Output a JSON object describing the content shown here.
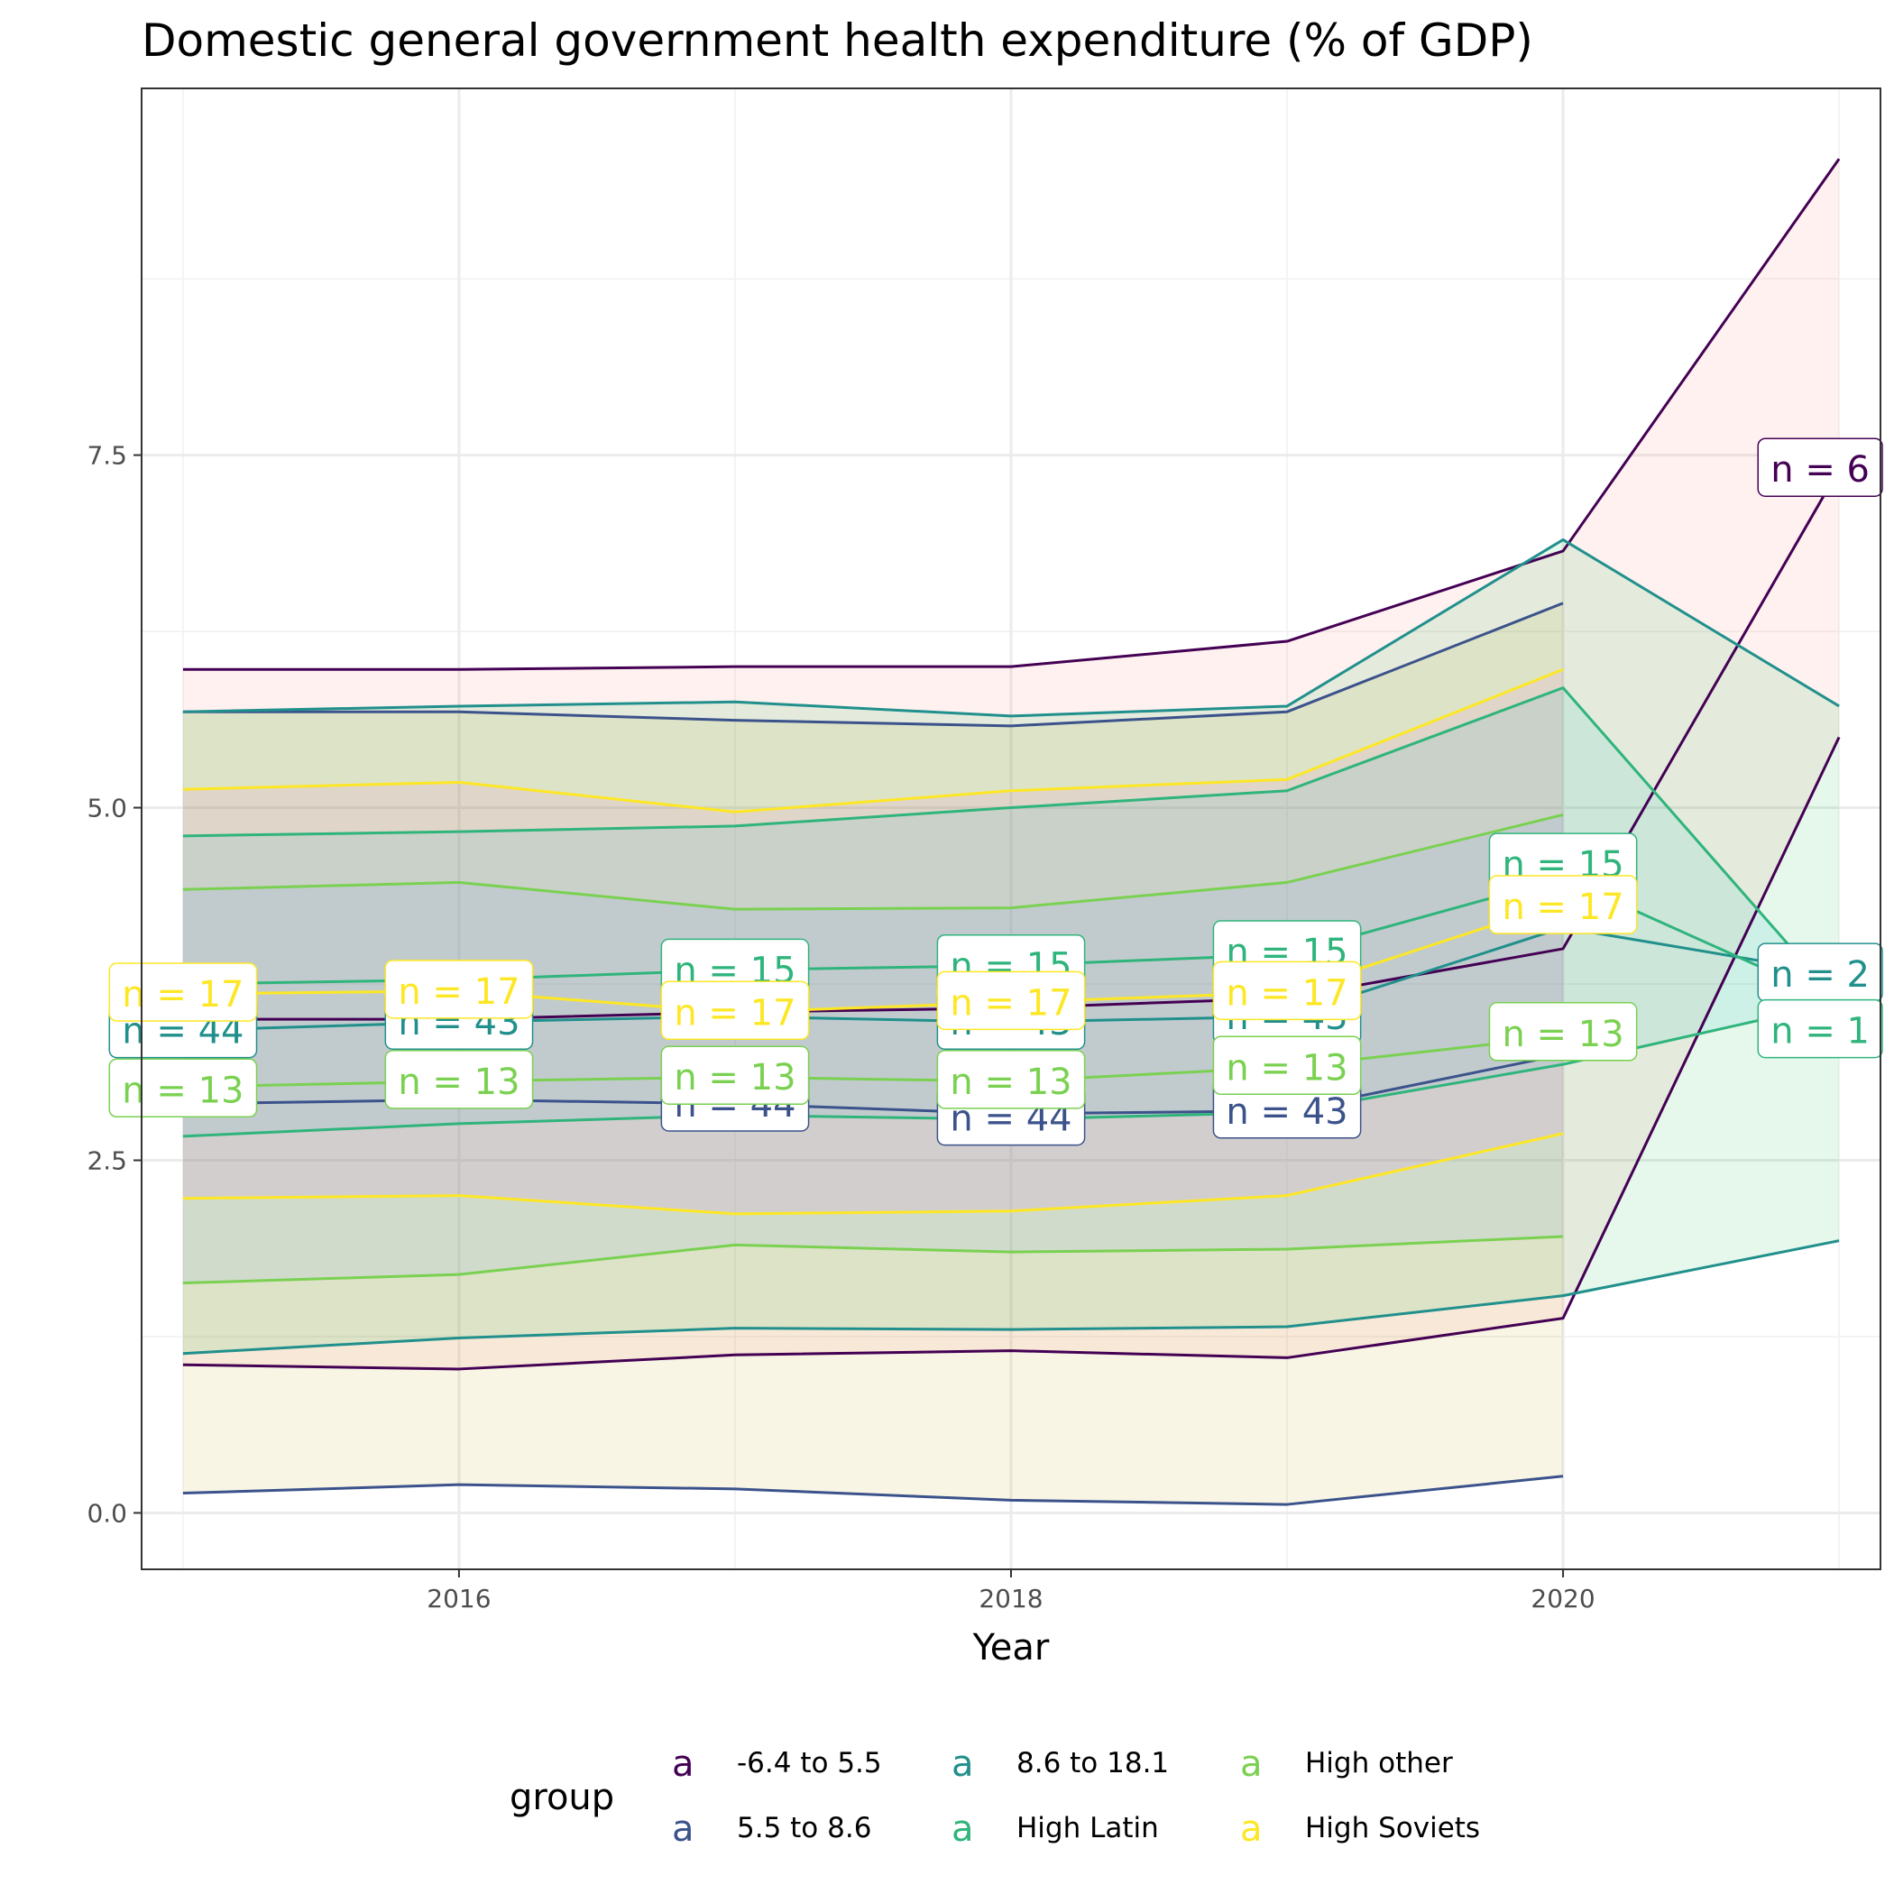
{
  "chart_data": {
    "type": "line",
    "title": "Domestic general government health expenditure (% of GDP)",
    "xlabel": "Year",
    "ylabel": "",
    "xlim": [
      2014.85,
      2021.15
    ],
    "ylim": [
      -0.4,
      10.1
    ],
    "x_ticks": [
      2016,
      2018,
      2020
    ],
    "x_tick_labels": [
      "2016",
      "2018",
      "2020"
    ],
    "y_ticks": [
      0,
      2.5,
      5,
      7.5
    ],
    "y_tick_labels": [
      "0.0",
      "2.5",
      "5.0",
      "7.5"
    ],
    "y_minor_ticks": [
      1.25,
      3.75,
      6.25,
      8.75
    ],
    "x_minor_ticks": [
      2015,
      2017,
      2019,
      2021
    ],
    "grid": true,
    "legend": {
      "title": "group",
      "position": "bottom",
      "key_glyph": "a",
      "entries": [
        "-6.4 to 5.5",
        "5.5 to 8.6",
        "8.6 to 18.1",
        "High Latin",
        "High other",
        "High Soviets"
      ]
    },
    "series": [
      {
        "name": "-6.4 to 5.5",
        "color": "#440154",
        "fill": "#F8766D",
        "x": [
          2015,
          2016,
          2017,
          2018,
          2019,
          2020,
          2021
        ],
        "mean": [
          3.5,
          3.5,
          3.55,
          3.58,
          3.65,
          4.0,
          7.4
        ],
        "upper": [
          5.98,
          5.98,
          6.0,
          6.0,
          6.18,
          6.82,
          9.6
        ],
        "lower": [
          1.05,
          1.02,
          1.12,
          1.15,
          1.1,
          1.38,
          5.5
        ],
        "labels": [
          {
            "x": 2021,
            "y": 7.4,
            "text": "n = 6"
          }
        ]
      },
      {
        "name": "5.5 to 8.6",
        "color": "#3B528B",
        "fill": "#B79F00",
        "x": [
          2015,
          2016,
          2017,
          2018,
          2019,
          2020
        ],
        "mean": [
          2.9,
          2.93,
          2.9,
          2.83,
          2.85,
          3.25
        ],
        "upper": [
          5.68,
          5.68,
          5.62,
          5.58,
          5.68,
          6.45
        ],
        "lower": [
          0.14,
          0.2,
          0.17,
          0.09,
          0.06,
          0.26
        ],
        "labels": [
          {
            "x": 2018,
            "y": 2.8,
            "text": "n = 44"
          },
          {
            "x": 2019,
            "y": 2.85,
            "text": "n = 43"
          }
        ]
      },
      {
        "name": "8.6 to 18.1",
        "color": "#21908C",
        "fill": "#00BA38",
        "x": [
          2015,
          2016,
          2017,
          2018,
          2019,
          2020,
          2021
        ],
        "mean": [
          3.42,
          3.48,
          3.52,
          3.48,
          3.52,
          4.15,
          3.82
        ],
        "upper": [
          5.68,
          5.72,
          5.75,
          5.65,
          5.72,
          6.9,
          5.72
        ],
        "lower": [
          1.13,
          1.24,
          1.31,
          1.3,
          1.32,
          1.54,
          1.93
        ],
        "labels": [
          {
            "x": 2021,
            "y": 3.82,
            "text": "n = 2"
          }
        ]
      },
      {
        "name": "High Latin",
        "color": "#2FB47C",
        "fill": "#00BFC4",
        "x": [
          2015,
          2016,
          2017,
          2018,
          2019,
          2020,
          2021
        ],
        "mean": [
          3.75,
          3.78,
          3.85,
          3.88,
          3.96,
          4.5,
          3.62
        ],
        "upper": [
          4.8,
          4.83,
          4.87,
          5.0,
          5.12,
          5.85,
          3.62
        ],
        "lower": [
          2.67,
          2.76,
          2.82,
          2.79,
          2.84,
          3.18,
          3.62
        ],
        "labels": [
          {
            "x": 2017,
            "y": 3.85,
            "text": "n = 15"
          },
          {
            "x": 2018,
            "y": 3.88,
            "text": "n = 15"
          },
          {
            "x": 2019,
            "y": 3.98,
            "text": "n = 15"
          },
          {
            "x": 2020,
            "y": 4.6,
            "text": "n = 15"
          },
          {
            "x": 2021,
            "y": 3.42,
            "text": "n = 1"
          }
        ]
      },
      {
        "name": "High other",
        "color": "#7AD151",
        "fill": "#619CFF",
        "x": [
          2015,
          2016,
          2017,
          2018,
          2019,
          2020
        ],
        "mean": [
          3.02,
          3.06,
          3.09,
          3.06,
          3.16,
          3.38
        ],
        "upper": [
          4.42,
          4.47,
          4.28,
          4.29,
          4.47,
          4.95
        ],
        "lower": [
          1.63,
          1.69,
          1.9,
          1.85,
          1.87,
          1.96
        ],
        "labels": [
          {
            "x": 2015,
            "y": 3.0,
            "text": "n = 13"
          },
          {
            "x": 2016,
            "y": 3.06,
            "text": "n = 13"
          },
          {
            "x": 2017,
            "y": 3.09,
            "text": "n = 13"
          },
          {
            "x": 2018,
            "y": 3.06,
            "text": "n = 13"
          },
          {
            "x": 2019,
            "y": 3.16,
            "text": "n = 13"
          },
          {
            "x": 2020,
            "y": 3.4,
            "text": "n = 13"
          }
        ]
      },
      {
        "name": "High Soviets",
        "color": "#FDE725",
        "fill": "#F564E3",
        "x": [
          2015,
          2016,
          2017,
          2018,
          2019,
          2020
        ],
        "mean": [
          3.68,
          3.7,
          3.55,
          3.62,
          3.69,
          4.33
        ],
        "upper": [
          5.13,
          5.18,
          4.97,
          5.12,
          5.2,
          5.98
        ],
        "lower": [
          2.23,
          2.25,
          2.12,
          2.14,
          2.25,
          2.69
        ],
        "labels": [
          {
            "x": 2015,
            "y": 3.68,
            "text": "n = 17"
          },
          {
            "x": 2016,
            "y": 3.7,
            "text": "n = 17"
          },
          {
            "x": 2017,
            "y": 3.55,
            "text": "n = 17"
          },
          {
            "x": 2018,
            "y": 3.62,
            "text": "n = 17"
          },
          {
            "x": 2019,
            "y": 3.69,
            "text": "n = 17"
          },
          {
            "x": 2020,
            "y": 4.3,
            "text": "n = 17"
          }
        ]
      }
    ],
    "background_labels": [
      {
        "x": 2015,
        "y": 3.42,
        "text": "n = 44",
        "color": "#21908C"
      },
      {
        "x": 2016,
        "y": 3.48,
        "text": "n = 43",
        "color": "#21908C"
      },
      {
        "x": 2018,
        "y": 3.48,
        "text": "n = 43",
        "color": "#21908C"
      },
      {
        "x": 2019,
        "y": 3.52,
        "text": "n = 43",
        "color": "#21908C"
      },
      {
        "x": 2017,
        "y": 2.9,
        "text": "n = 44",
        "color": "#3B528B"
      }
    ]
  }
}
